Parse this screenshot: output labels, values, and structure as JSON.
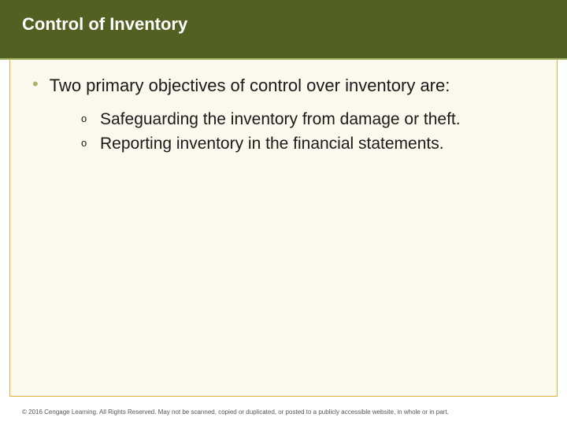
{
  "colors": {
    "header_bg": "#526121",
    "header_text": "#ffffff",
    "header_rule": "#a6b56a",
    "content_bg": "#fbf8ed",
    "content_border": "#e7ae3a",
    "bullet_color": "#a6b56a",
    "body_text": "#1a1a1a",
    "footer_text": "#555555"
  },
  "header": {
    "title": "Control of Inventory"
  },
  "main": {
    "bullet_text": "Two primary objectives of control over inventory are:",
    "sub_items": [
      {
        "marker": "o",
        "text": "Safeguarding the inventory from damage or theft."
      },
      {
        "marker": "o",
        "text": "Reporting inventory in the financial statements."
      }
    ]
  },
  "footer": {
    "text": "© 2016 Cengage Learning. All Rights Reserved. May not be scanned, copied or duplicated, or posted to a publicly accessible website, in whole or in part."
  },
  "typography": {
    "title_fontsize": 22,
    "body_fontsize": 22,
    "sub_fontsize": 21,
    "footer_fontsize": 8
  }
}
